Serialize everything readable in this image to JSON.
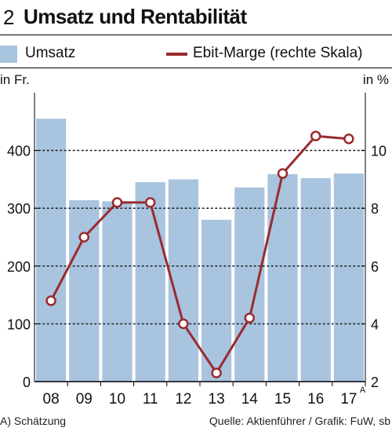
{
  "header": {
    "number": "2",
    "title": "Umsatz und Rentabilität"
  },
  "legend": {
    "bar_label": "Umsatz",
    "line_label": "Ebit-Marge (rechte Skala)"
  },
  "units": {
    "left": "in Fr.",
    "right": "in %"
  },
  "footer": {
    "note": "A) Schätzung",
    "source": "Quelle: Aktienführer / Grafik: FuW, sb"
  },
  "colors": {
    "bar": "#a8c4df",
    "line": "#9a2b2f",
    "marker_fill": "#ffffff"
  },
  "chart_data": {
    "type": "bar+line",
    "categories": [
      "08",
      "09",
      "10",
      "11",
      "12",
      "13",
      "14",
      "15",
      "16",
      "17"
    ],
    "category_footnote": {
      "index": 9,
      "mark": "A"
    },
    "series": [
      {
        "name": "Umsatz",
        "type": "bar",
        "axis": "left",
        "values": [
          455,
          314,
          312,
          345,
          350,
          280,
          336,
          359,
          352,
          360
        ]
      },
      {
        "name": "Ebit-Marge (rechte Skala)",
        "type": "line",
        "axis": "right",
        "values": [
          4.8,
          7.0,
          8.2,
          8.2,
          4.0,
          2.3,
          4.2,
          9.2,
          10.5,
          10.4
        ]
      }
    ],
    "y_left": {
      "ylim": [
        0,
        500
      ],
      "ticks": [
        0,
        100,
        200,
        300,
        400
      ]
    },
    "y_right": {
      "ylim": [
        2,
        12
      ],
      "ticks": [
        2,
        4,
        6,
        8,
        10
      ]
    },
    "grid": "dotted horizontal"
  }
}
